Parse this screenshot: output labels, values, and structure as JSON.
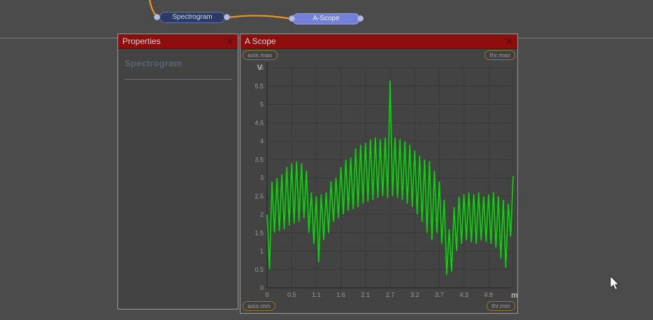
{
  "graph": {
    "nodes": [
      {
        "id": "spectrogram",
        "label": "Spectrogram"
      },
      {
        "id": "a-scope",
        "label": "A-Scope"
      }
    ]
  },
  "properties_panel": {
    "title": "Properties",
    "close": "✕",
    "heading": "Spectrogram"
  },
  "scope_panel": {
    "title": "A Scope",
    "close": "✕",
    "badges": {
      "axis_max": "axis.max",
      "thr_max": "thr.max",
      "axis_min": "axis.min",
      "thr_min": "thr.min"
    }
  },
  "chart_data": {
    "type": "line",
    "title": "A Scope",
    "x_unit": "m",
    "y_unit": "V",
    "xlim": [
      0,
      5.33
    ],
    "ylim": [
      0,
      6
    ],
    "grid": true,
    "legend": "none",
    "x_tick_labels": [
      "0",
      "0.5",
      "1.1",
      "1.6",
      "2.1",
      "2.7",
      "3.2",
      "3.7",
      "4.3",
      "4.8"
    ],
    "y_tick_labels": [
      "0",
      "0.5",
      "1",
      "1.5",
      "2",
      "2.5",
      "3",
      "3.5",
      "4",
      "4.5",
      "5",
      "5.5",
      "6"
    ],
    "line_color": "#00dd00",
    "series": [
      {
        "name": "a-scope-trace",
        "x_start": 0,
        "x_step": 0.0533,
        "y": [
          2.0,
          0.5,
          2.9,
          1.5,
          3.0,
          1.55,
          3.1,
          1.6,
          3.3,
          1.7,
          3.4,
          1.75,
          3.45,
          1.8,
          3.4,
          1.9,
          3.2,
          1.5,
          2.6,
          1.2,
          2.5,
          0.7,
          2.55,
          1.3,
          2.6,
          1.5,
          2.9,
          1.8,
          3.0,
          1.9,
          3.3,
          2.0,
          3.5,
          2.1,
          3.55,
          2.15,
          3.8,
          2.2,
          3.9,
          2.3,
          3.95,
          2.35,
          4.05,
          2.4,
          4.1,
          2.45,
          4.05,
          2.5,
          4.1,
          2.45,
          5.65,
          2.5,
          4.1,
          2.45,
          4.05,
          2.4,
          4.0,
          2.3,
          3.9,
          2.2,
          3.75,
          2.0,
          3.6,
          1.8,
          3.5,
          1.5,
          3.45,
          1.3,
          3.2,
          1.5,
          2.9,
          1.2,
          2.4,
          0.35,
          1.6,
          0.45,
          2.2,
          1.0,
          2.5,
          1.2,
          2.55,
          1.3,
          2.6,
          1.25,
          2.55,
          1.2,
          2.6,
          1.3,
          2.5,
          1.25,
          2.55,
          1.2,
          2.6,
          1.1,
          2.5,
          0.8,
          2.4,
          0.55,
          2.3,
          1.4,
          3.05
        ]
      }
    ]
  },
  "colors": {
    "title_bar": "#8e0d0d",
    "wire": "#ef941c",
    "node_spectrogram_fill": "#2e3a63",
    "node_ascope_fill": "#7480d8",
    "port_fill": "#b5bbe2",
    "badge_border": "#8f7a33",
    "trace": "#00dd00",
    "background": "#4b4b4b"
  }
}
